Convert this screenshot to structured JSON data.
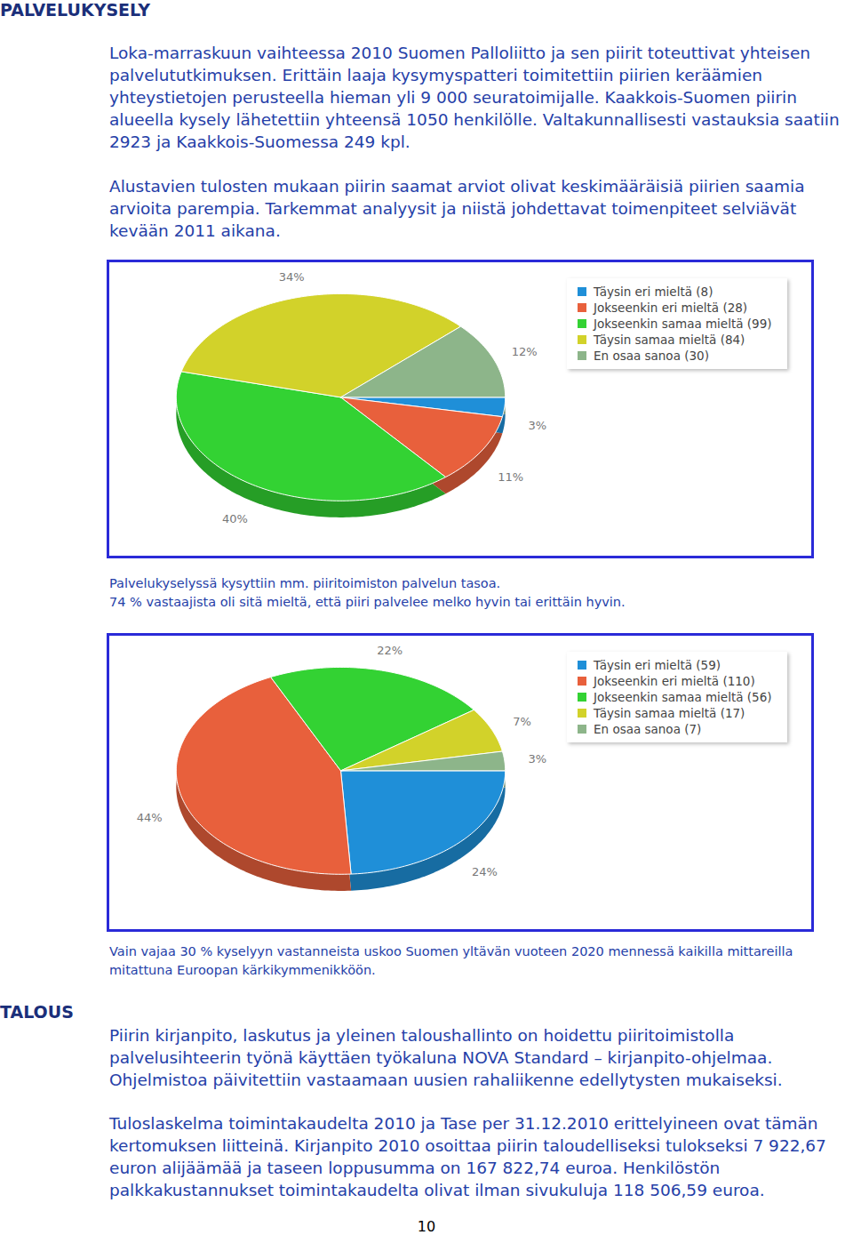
{
  "header": "PALVELUKYSELY",
  "paragraphs": [
    "Loka-marraskuun vaihteessa 2010 Suomen Palloliitto ja sen piirit toteuttivat yhteisen palvelututkimuksen. Erittäin laaja kysymyspatteri toimitettiin piirien keräämien yhteystietojen perusteella hieman yli 9 000 seuratoimijalle. Kaakkois-Suomen piirin alueella kysely lähetettiin yhteensä 1050 henkilölle. Valtakunnallisesti vastauksia saatiin 2923 ja Kaakkois-Suomessa 249 kpl.",
    "Alustavien tulosten mukaan piirin saamat arviot olivat keskimääräisiä piirien saamia arvioita parempia. Tarkemmat analyysit ja niistä johdettavat toimenpiteet selviävät kevään 2011 aikana."
  ],
  "chart_data": [
    {
      "type": "pie",
      "categories": [
        "Täysin eri mieltä (8)",
        "Jokseenkin eri mieltä (28)",
        "Jokseenkin samaa mieltä (99)",
        "Täysin samaa mieltä (84)",
        "En osaa sanoa (30)"
      ],
      "values": [
        3,
        11,
        40,
        34,
        12
      ],
      "value_labels": [
        "3%",
        "11%",
        "40%",
        "34%",
        "12%"
      ],
      "colors": [
        "#1f8fd8",
        "#e8603c",
        "#33d233",
        "#d2d22a",
        "#8db58a"
      ],
      "data_labels": true,
      "legend": "right"
    },
    {
      "type": "pie",
      "categories": [
        "Täysin eri mieltä (59)",
        "Jokseenkin eri mieltä (110)",
        "Jokseenkin samaa mieltä (56)",
        "Täysin samaa mieltä (17)",
        "En osaa sanoa (7)"
      ],
      "values": [
        24,
        44,
        22,
        7,
        3
      ],
      "value_labels": [
        "24%",
        "44%",
        "22%",
        "7%",
        "3%"
      ],
      "colors": [
        "#1f8fd8",
        "#e8603c",
        "#33d233",
        "#d2d22a",
        "#8db58a"
      ],
      "data_labels": true,
      "legend": "right"
    }
  ],
  "captions": [
    [
      "Palvelukyselyssä kysyttiin mm. piiritoimiston palvelun tasoa.",
      "74 % vastaajista oli sitä mieltä, että piiri palvelee melko hyvin tai erittäin hyvin."
    ],
    [
      "Vain vajaa 30 % kyselyyn vastanneista uskoo Suomen yltävän vuoteen 2020 mennessä kaikilla mittareilla mitattuna Euroopan kärkikymmenikköön."
    ]
  ],
  "section2": {
    "header": "TALOUS",
    "paragraphs": [
      "Piirin kirjanpito, laskutus ja yleinen taloushallinto on hoidettu piiritoimistolla palvelusihteerin työnä käyttäen työkaluna NOVA Standard – kirjanpito-ohjelmaa. Ohjelmistoa päivitettiin vastaamaan uusien rahaliikenne edellytysten mukaiseksi.",
      "Tuloslaskelma toimintakaudelta 2010 ja Tase per 31.12.2010 erittelyineen ovat tämän kertomuksen liitteinä. Kirjanpito 2010 osoittaa piirin taloudelliseksi tulokseksi 7 922,67 euron alijäämää ja taseen loppusumma on 167 822,74 euroa.  Henkilöstön palkkakustannukset toimintakaudelta olivat ilman sivukuluja 118 506,59 euroa."
    ]
  },
  "page_number": "10"
}
